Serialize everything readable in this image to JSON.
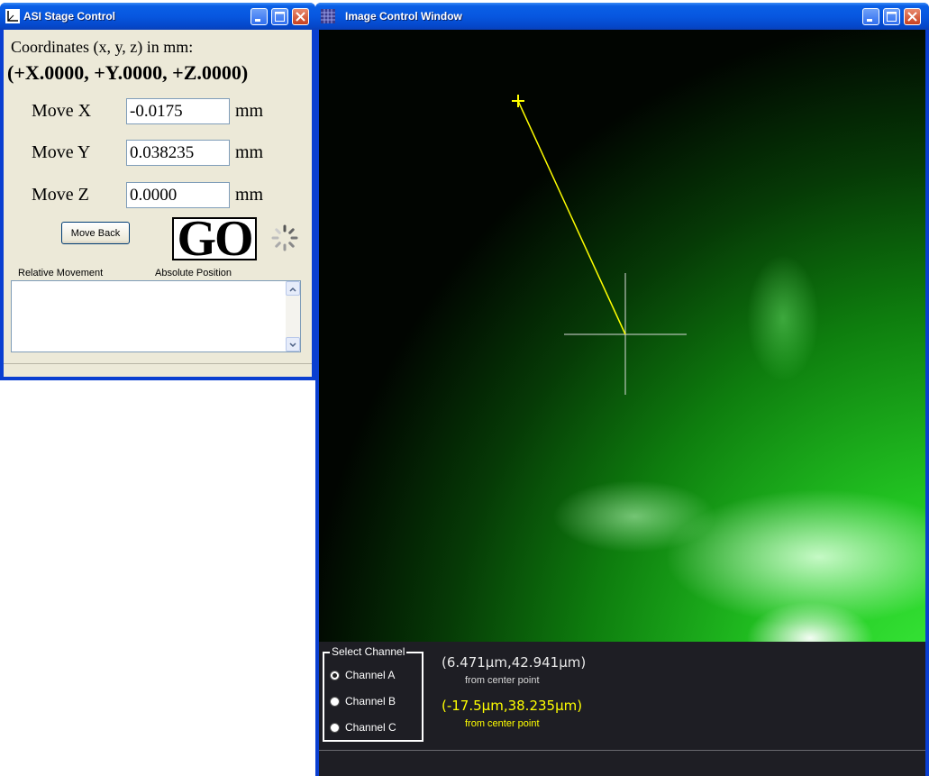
{
  "stage_window": {
    "title": "ASI Stage Control",
    "coords_label": "Coordinates  (x, y, z) in mm:",
    "coords_value": "(+X.0000, +Y.0000, +Z.0000)",
    "move_x_label": "Move  X",
    "move_y_label": "Move  Y",
    "move_z_label": "Move  Z",
    "move_x_value": "-0.0175",
    "move_y_value": "0.038235",
    "move_z_value": "0.0000",
    "unit": "mm",
    "move_back_label": "Move Back",
    "go_label": "GO",
    "relative_label": "Relative Movement",
    "absolute_label": "Absolute Position"
  },
  "image_window": {
    "title": "Image Control Window",
    "select_channel_label": "Select Channel",
    "channels": [
      "Channel A",
      "Channel B",
      "Channel C"
    ],
    "selected_channel": "Channel A",
    "coord_white": "(6.471µm,42.941µm)",
    "coord_white_sub": "from center point",
    "coord_yellow": "(-17.5µm,38.235µm)",
    "coord_yellow_sub": "from center point"
  },
  "colors": {
    "title_bar": "#0757e0",
    "window_bg": "#ece9d8",
    "fluorescence": "#22c422",
    "crosshair": "#dcdcdc",
    "marker_line": "#ffff00",
    "coord_yellow": "#ffff00",
    "panel_bg": "#1e1e24"
  }
}
